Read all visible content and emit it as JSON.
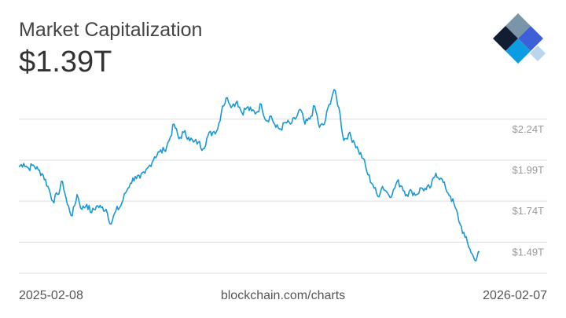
{
  "header": {
    "title": "Market Capitalization",
    "value": "$1.39T"
  },
  "footer": {
    "start_date": "2025-02-08",
    "source": "blockchain.com/charts",
    "end_date": "2026-02-07"
  },
  "logo": {
    "icon": "blockchain-logo-icon",
    "colors": [
      "#121d33",
      "#7b95a8",
      "#3d5fd8",
      "#0c9ce3",
      "#b9d6ec"
    ]
  },
  "colors": {
    "line": "#1a98d2",
    "grid": "#dddddd",
    "tick_text": "#999999"
  },
  "chart_data": {
    "type": "line",
    "x_range": [
      "2025-02-08",
      "2026-02-07"
    ],
    "ylim": [
      1.3,
      2.44
    ],
    "y_ticks": [
      {
        "value": 1.49,
        "label": "$1.49T"
      },
      {
        "value": 1.74,
        "label": "$1.74T"
      },
      {
        "value": 1.99,
        "label": "$1.99T"
      },
      {
        "value": 2.24,
        "label": "$2.24T"
      }
    ],
    "grid": true,
    "series": [
      {
        "values": [
          1.95,
          1.97,
          1.94,
          1.96,
          1.93,
          1.9,
          1.83,
          1.74,
          1.78,
          1.86,
          1.72,
          1.65,
          1.78,
          1.69,
          1.72,
          1.67,
          1.71,
          1.7,
          1.69,
          1.6,
          1.68,
          1.71,
          1.79,
          1.85,
          1.89,
          1.88,
          1.91,
          1.96,
          2.01,
          2.04,
          2.05,
          2.11,
          2.21,
          2.12,
          2.16,
          2.13,
          2.1,
          2.1,
          2.06,
          2.14,
          2.16,
          2.18,
          2.32,
          2.37,
          2.32,
          2.35,
          2.28,
          2.31,
          2.29,
          2.28,
          2.33,
          2.23,
          2.26,
          2.19,
          2.18,
          2.22,
          2.21,
          2.24,
          2.3,
          2.21,
          2.24,
          2.32,
          2.19,
          2.21,
          2.33,
          2.42,
          2.31,
          2.11,
          2.15,
          2.11,
          2.05,
          2.0,
          1.9,
          1.84,
          1.77,
          1.83,
          1.79,
          1.78,
          1.86,
          1.83,
          1.78,
          1.8,
          1.78,
          1.82,
          1.81,
          1.83,
          1.91,
          1.88,
          1.82,
          1.77,
          1.7,
          1.6,
          1.52,
          1.45,
          1.38,
          1.43
        ]
      }
    ]
  }
}
